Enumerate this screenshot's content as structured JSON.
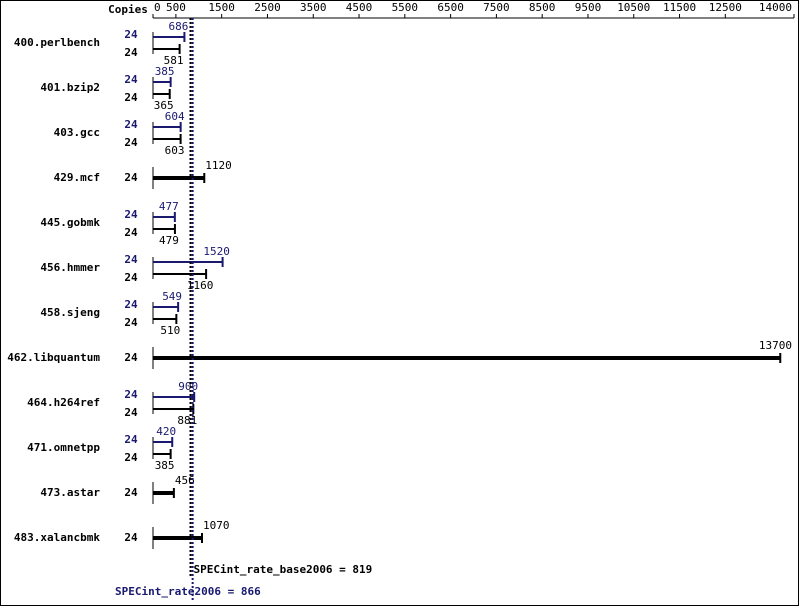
{
  "chart_data": {
    "type": "bar",
    "orientation": "horizontal",
    "header": "Copies",
    "categories": [
      "400.perlbench",
      "401.bzip2",
      "403.gcc",
      "429.mcf",
      "445.gobmk",
      "456.hmmer",
      "458.sjeng",
      "462.libquantum",
      "464.h264ref",
      "471.omnetpp",
      "473.astar",
      "483.xalancbmk"
    ],
    "series": [
      {
        "color": "#000000",
        "copies": [
          24,
          24,
          24,
          24,
          24,
          24,
          24,
          24,
          24,
          24,
          24,
          24
        ],
        "values": [
          581,
          365,
          603,
          1120,
          479,
          1160,
          510,
          13700,
          881,
          385,
          456,
          1070
        ]
      },
      {
        "color": "#191970",
        "copies": [
          24,
          24,
          24,
          null,
          24,
          24,
          24,
          null,
          24,
          24,
          null,
          null
        ],
        "values": [
          686,
          385,
          604,
          null,
          477,
          1520,
          549,
          null,
          900,
          420,
          null,
          null
        ]
      }
    ],
    "xlim": [
      0,
      14000
    ],
    "xticks": [
      0,
      500,
      1500,
      2500,
      3500,
      4500,
      5500,
      6500,
      7500,
      8500,
      9500,
      10500,
      11500,
      12500,
      14000
    ],
    "reference_lines": [
      {
        "text": "SPECint_rate_base2006 = 819",
        "value": 819,
        "color": "#000000"
      },
      {
        "text": "SPECint_rate2006 = 866",
        "value": 866,
        "color": "#191970"
      }
    ]
  }
}
